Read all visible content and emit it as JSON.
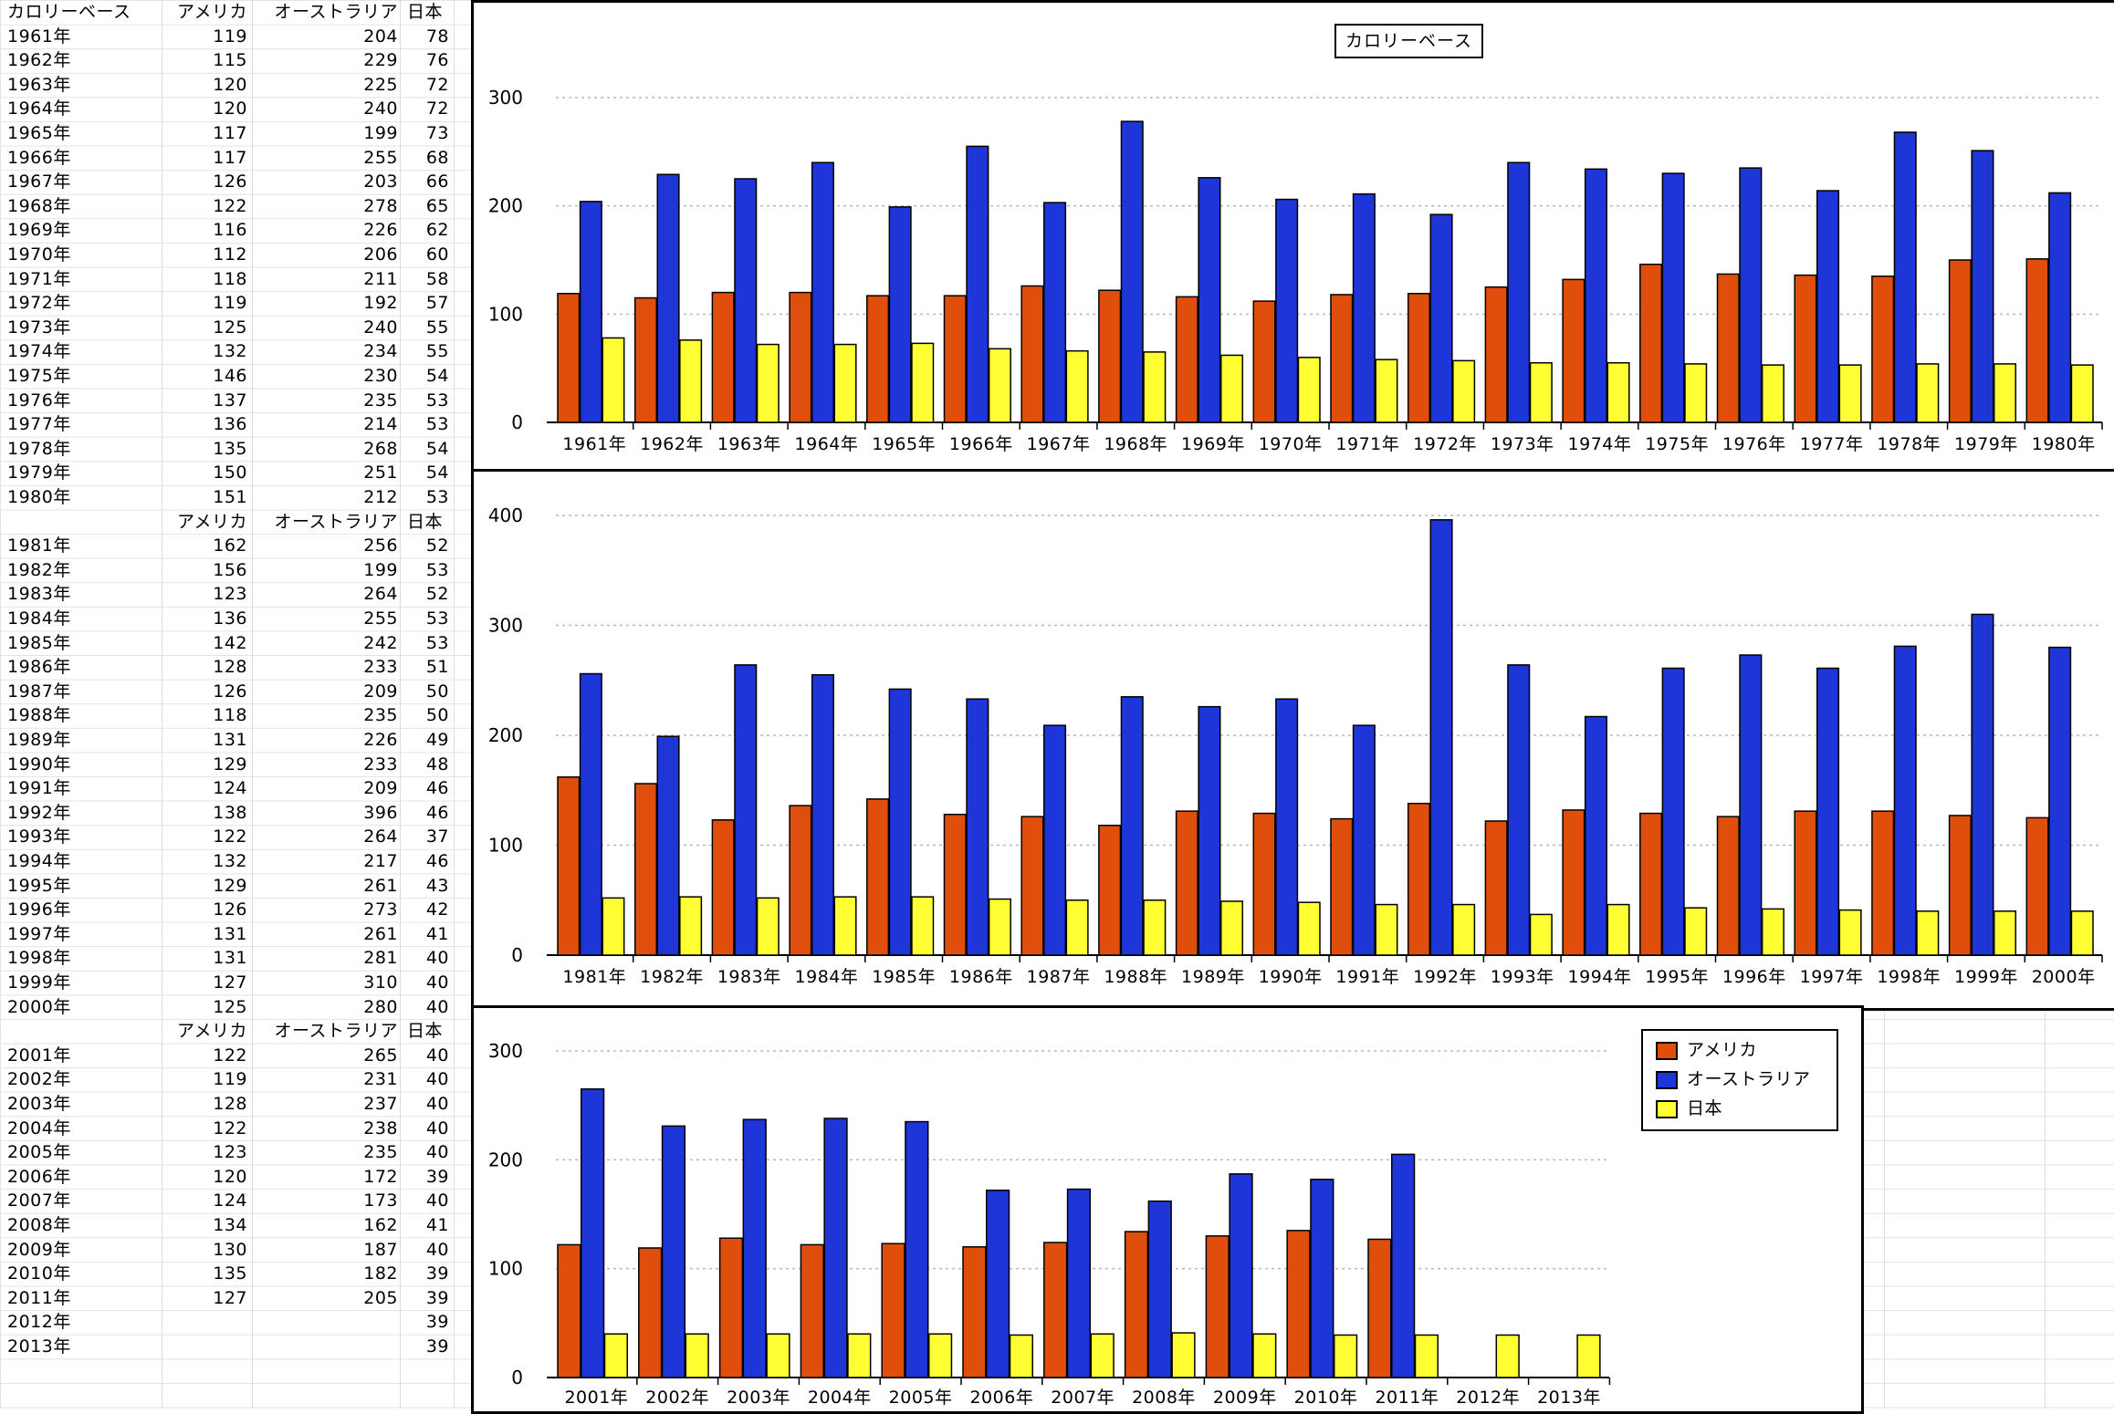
{
  "sheet": {
    "header": [
      "カロリーベース",
      "アメリカ",
      "オーストラリア",
      "日本"
    ],
    "blocks": [
      {
        "header": [
          "",
          "アメリカ",
          "オーストラリア",
          "日本"
        ],
        "rows": [
          [
            "1961年",
            "119",
            "204",
            "78"
          ],
          [
            "1962年",
            "115",
            "229",
            "76"
          ],
          [
            "1963年",
            "120",
            "225",
            "72"
          ],
          [
            "1964年",
            "120",
            "240",
            "72"
          ],
          [
            "1965年",
            "117",
            "199",
            "73"
          ],
          [
            "1966年",
            "117",
            "255",
            "68"
          ],
          [
            "1967年",
            "126",
            "203",
            "66"
          ],
          [
            "1968年",
            "122",
            "278",
            "65"
          ],
          [
            "1969年",
            "116",
            "226",
            "62"
          ],
          [
            "1970年",
            "112",
            "206",
            "60"
          ],
          [
            "1971年",
            "118",
            "211",
            "58"
          ],
          [
            "1972年",
            "119",
            "192",
            "57"
          ],
          [
            "1973年",
            "125",
            "240",
            "55"
          ],
          [
            "1974年",
            "132",
            "234",
            "55"
          ],
          [
            "1975年",
            "146",
            "230",
            "54"
          ],
          [
            "1976年",
            "137",
            "235",
            "53"
          ],
          [
            "1977年",
            "136",
            "214",
            "53"
          ],
          [
            "1978年",
            "135",
            "268",
            "54"
          ],
          [
            "1979年",
            "150",
            "251",
            "54"
          ],
          [
            "1980年",
            "151",
            "212",
            "53"
          ]
        ]
      },
      {
        "header": [
          "",
          "アメリカ",
          "オーストラリア",
          "日本"
        ],
        "rows": [
          [
            "1981年",
            "162",
            "256",
            "52"
          ],
          [
            "1982年",
            "156",
            "199",
            "53"
          ],
          [
            "1983年",
            "123",
            "264",
            "52"
          ],
          [
            "1984年",
            "136",
            "255",
            "53"
          ],
          [
            "1985年",
            "142",
            "242",
            "53"
          ],
          [
            "1986年",
            "128",
            "233",
            "51"
          ],
          [
            "1987年",
            "126",
            "209",
            "50"
          ],
          [
            "1988年",
            "118",
            "235",
            "50"
          ],
          [
            "1989年",
            "131",
            "226",
            "49"
          ],
          [
            "1990年",
            "129",
            "233",
            "48"
          ],
          [
            "1991年",
            "124",
            "209",
            "46"
          ],
          [
            "1992年",
            "138",
            "396",
            "46"
          ],
          [
            "1993年",
            "122",
            "264",
            "37"
          ],
          [
            "1994年",
            "132",
            "217",
            "46"
          ],
          [
            "1995年",
            "129",
            "261",
            "43"
          ],
          [
            "1996年",
            "126",
            "273",
            "42"
          ],
          [
            "1997年",
            "131",
            "261",
            "41"
          ],
          [
            "1998年",
            "131",
            "281",
            "40"
          ],
          [
            "1999年",
            "127",
            "310",
            "40"
          ],
          [
            "2000年",
            "125",
            "280",
            "40"
          ]
        ]
      },
      {
        "header": [
          "",
          "アメリカ",
          "オーストラリア",
          "日本"
        ],
        "rows": [
          [
            "2001年",
            "122",
            "265",
            "40"
          ],
          [
            "2002年",
            "119",
            "231",
            "40"
          ],
          [
            "2003年",
            "128",
            "237",
            "40"
          ],
          [
            "2004年",
            "122",
            "238",
            "40"
          ],
          [
            "2005年",
            "123",
            "235",
            "40"
          ],
          [
            "2006年",
            "120",
            "172",
            "39"
          ],
          [
            "2007年",
            "124",
            "173",
            "40"
          ],
          [
            "2008年",
            "134",
            "162",
            "41"
          ],
          [
            "2009年",
            "130",
            "187",
            "40"
          ],
          [
            "2010年",
            "135",
            "182",
            "39"
          ],
          [
            "2011年",
            "127",
            "205",
            "39"
          ],
          [
            "2012年",
            "",
            "",
            "39"
          ],
          [
            "2013年",
            "",
            "",
            "39"
          ]
        ]
      }
    ]
  },
  "chart_title": "カロリーベース",
  "colors": {
    "america": "#e04e0c",
    "australia": "#1e35d8",
    "japan": "#ffff33"
  },
  "legend": [
    {
      "name": "アメリカ",
      "color": "#e04e0c"
    },
    {
      "name": "オーストラリア",
      "color": "#1e35d8"
    },
    {
      "name": "日本",
      "color": "#ffff33"
    }
  ],
  "chart_data": [
    {
      "type": "bar",
      "title": "カロリーベース",
      "categories": [
        "1961年",
        "1962年",
        "1963年",
        "1964年",
        "1965年",
        "1966年",
        "1967年",
        "1968年",
        "1969年",
        "1970年",
        "1971年",
        "1972年",
        "1973年",
        "1974年",
        "1975年",
        "1976年",
        "1977年",
        "1978年",
        "1979年",
        "1980年"
      ],
      "series": [
        {
          "name": "アメリカ",
          "values": [
            119,
            115,
            120,
            120,
            117,
            117,
            126,
            122,
            116,
            112,
            118,
            119,
            125,
            132,
            146,
            137,
            136,
            135,
            150,
            151
          ]
        },
        {
          "name": "オーストラリア",
          "values": [
            204,
            229,
            225,
            240,
            199,
            255,
            203,
            278,
            226,
            206,
            211,
            192,
            240,
            234,
            230,
            235,
            214,
            268,
            251,
            212
          ]
        },
        {
          "name": "日本",
          "values": [
            78,
            76,
            72,
            72,
            73,
            68,
            66,
            65,
            62,
            60,
            58,
            57,
            55,
            55,
            54,
            53,
            53,
            54,
            54,
            53
          ]
        }
      ],
      "yticks": [
        "0",
        "100",
        "200",
        "300"
      ],
      "ylim": [
        0,
        300
      ],
      "grid": true
    },
    {
      "type": "bar",
      "categories": [
        "1981年",
        "1982年",
        "1983年",
        "1984年",
        "1985年",
        "1986年",
        "1987年",
        "1988年",
        "1989年",
        "1990年",
        "1991年",
        "1992年",
        "1993年",
        "1994年",
        "1995年",
        "1996年",
        "1997年",
        "1998年",
        "1999年",
        "2000年"
      ],
      "series": [
        {
          "name": "アメリカ",
          "values": [
            162,
            156,
            123,
            136,
            142,
            128,
            126,
            118,
            131,
            129,
            124,
            138,
            122,
            132,
            129,
            126,
            131,
            131,
            127,
            125
          ]
        },
        {
          "name": "オーストラリア",
          "values": [
            256,
            199,
            264,
            255,
            242,
            233,
            209,
            235,
            226,
            233,
            209,
            396,
            264,
            217,
            261,
            273,
            261,
            281,
            310,
            280
          ]
        },
        {
          "name": "日本",
          "values": [
            52,
            53,
            52,
            53,
            53,
            51,
            50,
            50,
            49,
            48,
            46,
            46,
            37,
            46,
            43,
            42,
            41,
            40,
            40,
            40
          ]
        }
      ],
      "yticks": [
        "0",
        "100",
        "200",
        "300",
        "400"
      ],
      "ylim": [
        0,
        400
      ],
      "grid": true
    },
    {
      "type": "bar",
      "categories": [
        "2001年",
        "2002年",
        "2003年",
        "2004年",
        "2005年",
        "2006年",
        "2007年",
        "2008年",
        "2009年",
        "2010年",
        "2011年",
        "2012年",
        "2013年"
      ],
      "series": [
        {
          "name": "アメリカ",
          "values": [
            122,
            119,
            128,
            122,
            123,
            120,
            124,
            134,
            130,
            135,
            127,
            null,
            null
          ]
        },
        {
          "name": "オーストラリア",
          "values": [
            265,
            231,
            237,
            238,
            235,
            172,
            173,
            162,
            187,
            182,
            205,
            null,
            null
          ]
        },
        {
          "name": "日本",
          "values": [
            40,
            40,
            40,
            40,
            40,
            39,
            40,
            41,
            40,
            39,
            39,
            39,
            39
          ]
        }
      ],
      "yticks": [
        "0",
        "100",
        "200",
        "300"
      ],
      "ylim": [
        0,
        300
      ],
      "grid": true,
      "legend_position": "top-right"
    }
  ]
}
